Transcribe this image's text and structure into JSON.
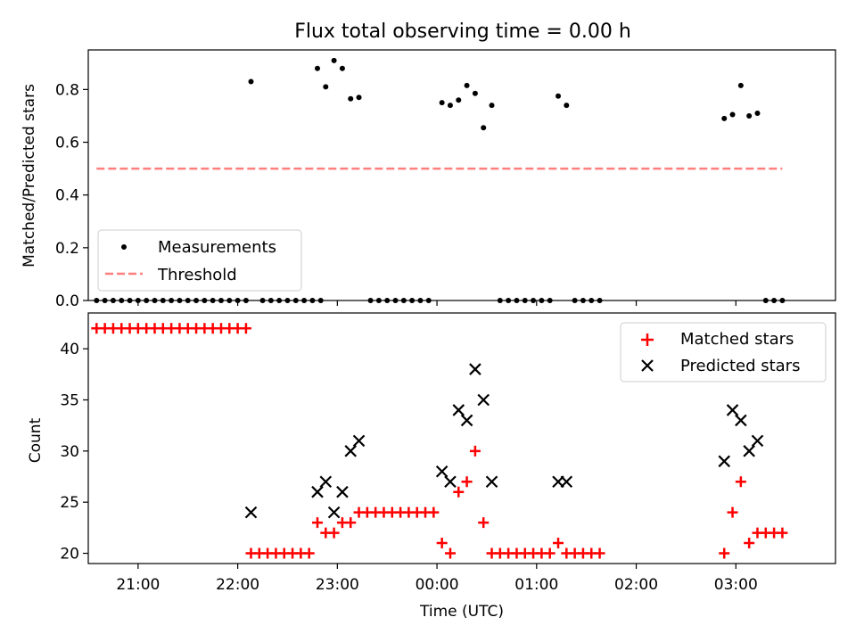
{
  "chart_data": [
    {
      "type": "scatter",
      "title": "Flux total observing time = 0.00 h",
      "ylabel": "Matched/Predicted stars",
      "xlim": [
        "20:30",
        "04:00"
      ],
      "ylim": [
        0,
        0.95
      ],
      "yticks": [
        "0.0",
        "0.2",
        "0.4",
        "0.6",
        "0.8"
      ],
      "legend": "lower-left",
      "series": [
        {
          "name": "Measurements",
          "marker": "dot",
          "color": "#000000",
          "points": [
            {
              "x": "20:35",
              "y": 0
            },
            {
              "x": "20:40",
              "y": 0
            },
            {
              "x": "20:45",
              "y": 0
            },
            {
              "x": "20:50",
              "y": 0
            },
            {
              "x": "20:55",
              "y": 0
            },
            {
              "x": "21:00",
              "y": 0
            },
            {
              "x": "21:05",
              "y": 0
            },
            {
              "x": "21:10",
              "y": 0
            },
            {
              "x": "21:15",
              "y": 0
            },
            {
              "x": "21:20",
              "y": 0
            },
            {
              "x": "21:25",
              "y": 0
            },
            {
              "x": "21:30",
              "y": 0
            },
            {
              "x": "21:35",
              "y": 0
            },
            {
              "x": "21:40",
              "y": 0
            },
            {
              "x": "21:45",
              "y": 0
            },
            {
              "x": "21:50",
              "y": 0
            },
            {
              "x": "21:55",
              "y": 0
            },
            {
              "x": "22:00",
              "y": 0
            },
            {
              "x": "22:05",
              "y": 0
            },
            {
              "x": "22:08",
              "y": 0.83
            },
            {
              "x": "22:15",
              "y": 0
            },
            {
              "x": "22:20",
              "y": 0
            },
            {
              "x": "22:25",
              "y": 0
            },
            {
              "x": "22:30",
              "y": 0
            },
            {
              "x": "22:35",
              "y": 0
            },
            {
              "x": "22:40",
              "y": 0
            },
            {
              "x": "22:45",
              "y": 0
            },
            {
              "x": "22:50",
              "y": 0
            },
            {
              "x": "22:48",
              "y": 0.88
            },
            {
              "x": "22:53",
              "y": 0.81
            },
            {
              "x": "22:58",
              "y": 0.91
            },
            {
              "x": "23:03",
              "y": 0.88
            },
            {
              "x": "23:08",
              "y": 0.765
            },
            {
              "x": "23:13",
              "y": 0.77
            },
            {
              "x": "23:20",
              "y": 0
            },
            {
              "x": "23:25",
              "y": 0
            },
            {
              "x": "23:30",
              "y": 0
            },
            {
              "x": "23:35",
              "y": 0
            },
            {
              "x": "23:40",
              "y": 0
            },
            {
              "x": "23:45",
              "y": 0
            },
            {
              "x": "23:50",
              "y": 0
            },
            {
              "x": "23:55",
              "y": 0
            },
            {
              "x": "00:03",
              "y": 0.75
            },
            {
              "x": "00:08",
              "y": 0.74
            },
            {
              "x": "00:13",
              "y": 0.76
            },
            {
              "x": "00:18",
              "y": 0.815
            },
            {
              "x": "00:23",
              "y": 0.785
            },
            {
              "x": "00:28",
              "y": 0.655
            },
            {
              "x": "00:33",
              "y": 0.74
            },
            {
              "x": "00:38",
              "y": 0
            },
            {
              "x": "00:43",
              "y": 0
            },
            {
              "x": "00:48",
              "y": 0
            },
            {
              "x": "00:53",
              "y": 0
            },
            {
              "x": "00:58",
              "y": 0
            },
            {
              "x": "01:03",
              "y": 0
            },
            {
              "x": "01:08",
              "y": 0
            },
            {
              "x": "01:13",
              "y": 0.775
            },
            {
              "x": "01:18",
              "y": 0.74
            },
            {
              "x": "01:23",
              "y": 0
            },
            {
              "x": "01:28",
              "y": 0
            },
            {
              "x": "01:33",
              "y": 0
            },
            {
              "x": "01:38",
              "y": 0
            },
            {
              "x": "02:53",
              "y": 0.69
            },
            {
              "x": "02:58",
              "y": 0.705
            },
            {
              "x": "03:03",
              "y": 0.815
            },
            {
              "x": "03:08",
              "y": 0.7
            },
            {
              "x": "03:13",
              "y": 0.71
            },
            {
              "x": "03:18",
              "y": 0
            },
            {
              "x": "03:23",
              "y": 0
            },
            {
              "x": "03:28",
              "y": 0
            }
          ]
        },
        {
          "name": "Threshold",
          "type": "line",
          "style": "dashed",
          "color": "#ff7f7f",
          "points": [
            {
              "x": "20:35",
              "y": 0.5
            },
            {
              "x": "03:28",
              "y": 0.5
            }
          ]
        }
      ]
    },
    {
      "type": "scatter",
      "xlabel": "Time (UTC)",
      "ylabel": "Count",
      "xlim": [
        "20:30",
        "04:00"
      ],
      "ylim": [
        19,
        43.5
      ],
      "xticks": [
        "21:00",
        "22:00",
        "23:00",
        "00:00",
        "01:00",
        "02:00",
        "03:00"
      ],
      "yticks": [
        "20",
        "25",
        "30",
        "35",
        "40"
      ],
      "legend": "upper-right",
      "series": [
        {
          "name": "Matched stars",
          "marker": "plus",
          "color": "#ff0000",
          "points": [
            {
              "x": "20:35",
              "y": 42
            },
            {
              "x": "20:40",
              "y": 42
            },
            {
              "x": "20:45",
              "y": 42
            },
            {
              "x": "20:50",
              "y": 42
            },
            {
              "x": "20:55",
              "y": 42
            },
            {
              "x": "21:00",
              "y": 42
            },
            {
              "x": "21:05",
              "y": 42
            },
            {
              "x": "21:10",
              "y": 42
            },
            {
              "x": "21:15",
              "y": 42
            },
            {
              "x": "21:20",
              "y": 42
            },
            {
              "x": "21:25",
              "y": 42
            },
            {
              "x": "21:30",
              "y": 42
            },
            {
              "x": "21:35",
              "y": 42
            },
            {
              "x": "21:40",
              "y": 42
            },
            {
              "x": "21:45",
              "y": 42
            },
            {
              "x": "21:50",
              "y": 42
            },
            {
              "x": "21:55",
              "y": 42
            },
            {
              "x": "22:00",
              "y": 42
            },
            {
              "x": "22:05",
              "y": 42
            },
            {
              "x": "22:08",
              "y": 20
            },
            {
              "x": "22:13",
              "y": 20
            },
            {
              "x": "22:18",
              "y": 20
            },
            {
              "x": "22:23",
              "y": 20
            },
            {
              "x": "22:28",
              "y": 20
            },
            {
              "x": "22:33",
              "y": 20
            },
            {
              "x": "22:38",
              "y": 20
            },
            {
              "x": "22:43",
              "y": 20
            },
            {
              "x": "22:48",
              "y": 23
            },
            {
              "x": "22:53",
              "y": 22
            },
            {
              "x": "22:58",
              "y": 22
            },
            {
              "x": "23:03",
              "y": 23
            },
            {
              "x": "23:08",
              "y": 23
            },
            {
              "x": "23:13",
              "y": 24
            },
            {
              "x": "23:18",
              "y": 24
            },
            {
              "x": "23:23",
              "y": 24
            },
            {
              "x": "23:28",
              "y": 24
            },
            {
              "x": "23:33",
              "y": 24
            },
            {
              "x": "23:38",
              "y": 24
            },
            {
              "x": "23:43",
              "y": 24
            },
            {
              "x": "23:48",
              "y": 24
            },
            {
              "x": "23:53",
              "y": 24
            },
            {
              "x": "23:58",
              "y": 24
            },
            {
              "x": "00:03",
              "y": 21
            },
            {
              "x": "00:08",
              "y": 20
            },
            {
              "x": "00:13",
              "y": 26
            },
            {
              "x": "00:18",
              "y": 27
            },
            {
              "x": "00:23",
              "y": 30
            },
            {
              "x": "00:28",
              "y": 23
            },
            {
              "x": "00:33",
              "y": 20
            },
            {
              "x": "00:38",
              "y": 20
            },
            {
              "x": "00:43",
              "y": 20
            },
            {
              "x": "00:48",
              "y": 20
            },
            {
              "x": "00:53",
              "y": 20
            },
            {
              "x": "00:58",
              "y": 20
            },
            {
              "x": "01:03",
              "y": 20
            },
            {
              "x": "01:08",
              "y": 20
            },
            {
              "x": "01:13",
              "y": 21
            },
            {
              "x": "01:18",
              "y": 20
            },
            {
              "x": "01:23",
              "y": 20
            },
            {
              "x": "01:28",
              "y": 20
            },
            {
              "x": "01:33",
              "y": 20
            },
            {
              "x": "01:38",
              "y": 20
            },
            {
              "x": "02:53",
              "y": 20
            },
            {
              "x": "02:58",
              "y": 24
            },
            {
              "x": "03:03",
              "y": 27
            },
            {
              "x": "03:08",
              "y": 21
            },
            {
              "x": "03:13",
              "y": 22
            },
            {
              "x": "03:18",
              "y": 22
            },
            {
              "x": "03:23",
              "y": 22
            },
            {
              "x": "03:28",
              "y": 22
            }
          ]
        },
        {
          "name": "Predicted stars",
          "marker": "x",
          "color": "#000000",
          "points": [
            {
              "x": "22:08",
              "y": 24
            },
            {
              "x": "22:48",
              "y": 26
            },
            {
              "x": "22:53",
              "y": 27
            },
            {
              "x": "22:58",
              "y": 24
            },
            {
              "x": "23:03",
              "y": 26
            },
            {
              "x": "23:08",
              "y": 30
            },
            {
              "x": "23:13",
              "y": 31
            },
            {
              "x": "00:03",
              "y": 28
            },
            {
              "x": "00:08",
              "y": 27
            },
            {
              "x": "00:13",
              "y": 34
            },
            {
              "x": "00:18",
              "y": 33
            },
            {
              "x": "00:23",
              "y": 38
            },
            {
              "x": "00:28",
              "y": 35
            },
            {
              "x": "00:33",
              "y": 27
            },
            {
              "x": "01:13",
              "y": 27
            },
            {
              "x": "01:18",
              "y": 27
            },
            {
              "x": "02:53",
              "y": 29
            },
            {
              "x": "02:58",
              "y": 34
            },
            {
              "x": "03:03",
              "y": 33
            },
            {
              "x": "03:08",
              "y": 30
            },
            {
              "x": "03:13",
              "y": 31
            }
          ]
        }
      ]
    }
  ]
}
